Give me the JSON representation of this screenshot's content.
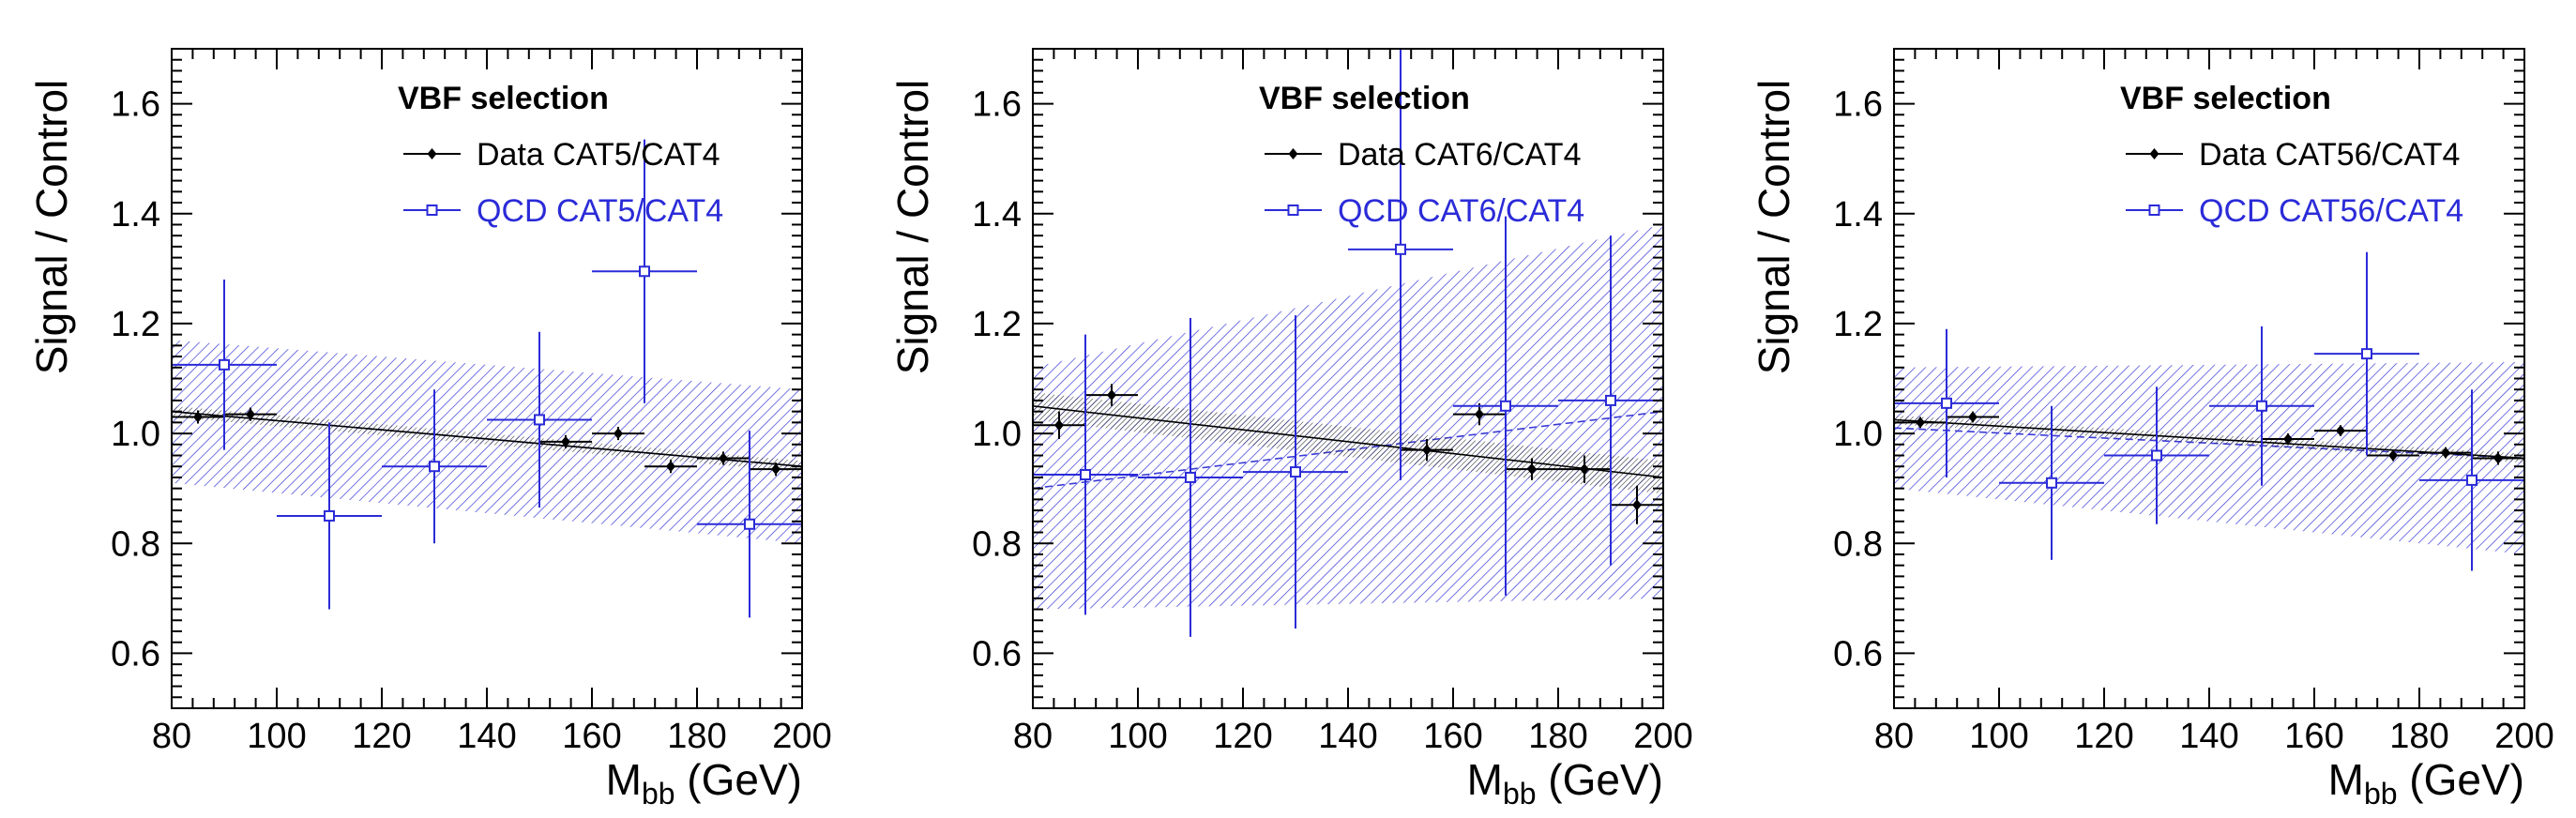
{
  "chart_data": [
    {
      "type": "scatter",
      "xlabel": "M",
      "xlabel_sub": "bb",
      "xlabel_unit": " (GeV)",
      "ylabel": "Signal / Control",
      "xlim": [
        80,
        200
      ],
      "ylim": [
        0.5,
        1.7
      ],
      "xticks": [
        80,
        100,
        120,
        140,
        160,
        180,
        200
      ],
      "yticks": [
        0.6,
        0.8,
        1.0,
        1.2,
        1.4,
        1.6
      ],
      "legend_title": "VBF selection",
      "series": [
        {
          "name": "Data CAT5/CAT4",
          "color": "#000000",
          "marker": "filled-diamond",
          "points": [
            {
              "x": 85,
              "y": 1.03,
              "xerr": 5,
              "yerr": 0.012
            },
            {
              "x": 95,
              "y": 1.035,
              "xerr": 5,
              "yerr": 0.012
            },
            {
              "x": 155,
              "y": 0.985,
              "xerr": 5,
              "yerr": 0.012
            },
            {
              "x": 165,
              "y": 1.0,
              "xerr": 5,
              "yerr": 0.012
            },
            {
              "x": 175,
              "y": 0.94,
              "xerr": 5,
              "yerr": 0.012
            },
            {
              "x": 185,
              "y": 0.955,
              "xerr": 5,
              "yerr": 0.012
            },
            {
              "x": 195,
              "y": 0.935,
              "xerr": 5,
              "yerr": 0.012
            }
          ],
          "fit": {
            "y_at_xmin": 1.04,
            "y_at_xmax": 0.94,
            "band_at_xmin": 0.01,
            "band_at_xmax": 0.01
          }
        },
        {
          "name": "QCD CAT5/CAT4",
          "color": "#2b2bd8",
          "marker": "open-square",
          "points": [
            {
              "x": 90,
              "y": 1.125,
              "xerr": 10,
              "yerr": 0.155
            },
            {
              "x": 110,
              "y": 0.85,
              "xerr": 10,
              "yerr": 0.17
            },
            {
              "x": 130,
              "y": 0.94,
              "xerr": 10,
              "yerr": 0.14
            },
            {
              "x": 150,
              "y": 1.025,
              "xerr": 10,
              "yerr": 0.16
            },
            {
              "x": 170,
              "y": 1.295,
              "xerr": 10,
              "yerr": 0.24
            },
            {
              "x": 190,
              "y": 0.835,
              "xerr": 10,
              "yerr": 0.17
            }
          ],
          "fit": {
            "y_at_xmin": 1.04,
            "y_at_xmax": 0.94,
            "band_at_xmin": 0.13,
            "band_at_xmax": 0.14
          }
        }
      ]
    },
    {
      "type": "scatter",
      "xlabel": "M",
      "xlabel_sub": "bb",
      "xlabel_unit": " (GeV)",
      "ylabel": "Signal / Control",
      "xlim": [
        80,
        200
      ],
      "ylim": [
        0.5,
        1.7
      ],
      "xticks": [
        80,
        100,
        120,
        140,
        160,
        180,
        200
      ],
      "yticks": [
        0.6,
        0.8,
        1.0,
        1.2,
        1.4,
        1.6
      ],
      "legend_title": "VBF selection",
      "series": [
        {
          "name": "Data CAT6/CAT4",
          "color": "#000000",
          "marker": "filled-diamond",
          "points": [
            {
              "x": 85,
              "y": 1.015,
              "xerr": 5,
              "yerr": 0.025
            },
            {
              "x": 95,
              "y": 1.07,
              "xerr": 5,
              "yerr": 0.02
            },
            {
              "x": 155,
              "y": 0.97,
              "xerr": 5,
              "yerr": 0.02
            },
            {
              "x": 165,
              "y": 1.035,
              "xerr": 5,
              "yerr": 0.02
            },
            {
              "x": 175,
              "y": 0.935,
              "xerr": 5,
              "yerr": 0.02
            },
            {
              "x": 185,
              "y": 0.935,
              "xerr": 5,
              "yerr": 0.025
            },
            {
              "x": 195,
              "y": 0.87,
              "xerr": 5,
              "yerr": 0.035
            }
          ],
          "fit": {
            "y_at_xmin": 1.05,
            "y_at_xmax": 0.92,
            "band_at_xmin": 0.025,
            "band_at_xmax": 0.03
          }
        },
        {
          "name": "QCD CAT6/CAT4",
          "color": "#2b2bd8",
          "marker": "open-square",
          "points": [
            {
              "x": 90,
              "y": 0.925,
              "xerr": 10,
              "yerr": 0.255
            },
            {
              "x": 110,
              "y": 0.92,
              "xerr": 10,
              "yerr": 0.29
            },
            {
              "x": 130,
              "y": 0.93,
              "xerr": 10,
              "yerr": 0.285
            },
            {
              "x": 150,
              "y": 1.335,
              "xerr": 10,
              "yerr": 0.42
            },
            {
              "x": 170,
              "y": 1.05,
              "xerr": 10,
              "yerr": 0.345
            },
            {
              "x": 190,
              "y": 1.06,
              "xerr": 10,
              "yerr": 0.3
            }
          ],
          "fit": {
            "y_at_xmin": 0.9,
            "y_at_xmax": 1.04,
            "band_at_xmin": 0.22,
            "band_at_xmax": 0.34
          }
        }
      ]
    },
    {
      "type": "scatter",
      "xlabel": "M",
      "xlabel_sub": "bb",
      "xlabel_unit": " (GeV)",
      "ylabel": "Signal / Control",
      "xlim": [
        80,
        200
      ],
      "ylim": [
        0.5,
        1.7
      ],
      "xticks": [
        80,
        100,
        120,
        140,
        160,
        180,
        200
      ],
      "yticks": [
        0.6,
        0.8,
        1.0,
        1.2,
        1.4,
        1.6
      ],
      "legend_title": "VBF selection",
      "series": [
        {
          "name": "Data CAT56/CAT4",
          "color": "#000000",
          "marker": "filled-diamond",
          "points": [
            {
              "x": 85,
              "y": 1.02,
              "xerr": 5,
              "yerr": 0.01
            },
            {
              "x": 95,
              "y": 1.03,
              "xerr": 5,
              "yerr": 0.01
            },
            {
              "x": 155,
              "y": 0.99,
              "xerr": 5,
              "yerr": 0.01
            },
            {
              "x": 165,
              "y": 1.005,
              "xerr": 5,
              "yerr": 0.01
            },
            {
              "x": 175,
              "y": 0.96,
              "xerr": 5,
              "yerr": 0.01
            },
            {
              "x": 185,
              "y": 0.965,
              "xerr": 5,
              "yerr": 0.01
            },
            {
              "x": 195,
              "y": 0.955,
              "xerr": 5,
              "yerr": 0.012
            }
          ],
          "fit": {
            "y_at_xmin": 1.025,
            "y_at_xmax": 0.955,
            "band_at_xmin": 0.008,
            "band_at_xmax": 0.008
          }
        },
        {
          "name": "QCD CAT56/CAT4",
          "color": "#2b2bd8",
          "marker": "open-square",
          "points": [
            {
              "x": 90,
              "y": 1.055,
              "xerr": 10,
              "yerr": 0.135
            },
            {
              "x": 110,
              "y": 0.91,
              "xerr": 10,
              "yerr": 0.14
            },
            {
              "x": 130,
              "y": 0.96,
              "xerr": 10,
              "yerr": 0.125
            },
            {
              "x": 150,
              "y": 1.05,
              "xerr": 10,
              "yerr": 0.145
            },
            {
              "x": 170,
              "y": 1.145,
              "xerr": 10,
              "yerr": 0.185
            },
            {
              "x": 190,
              "y": 0.915,
              "xerr": 10,
              "yerr": 0.165
            }
          ],
          "fit": {
            "y_at_xmin": 1.01,
            "y_at_xmax": 0.955,
            "band_at_xmin": 0.11,
            "band_at_xmax": 0.175
          }
        }
      ]
    }
  ]
}
